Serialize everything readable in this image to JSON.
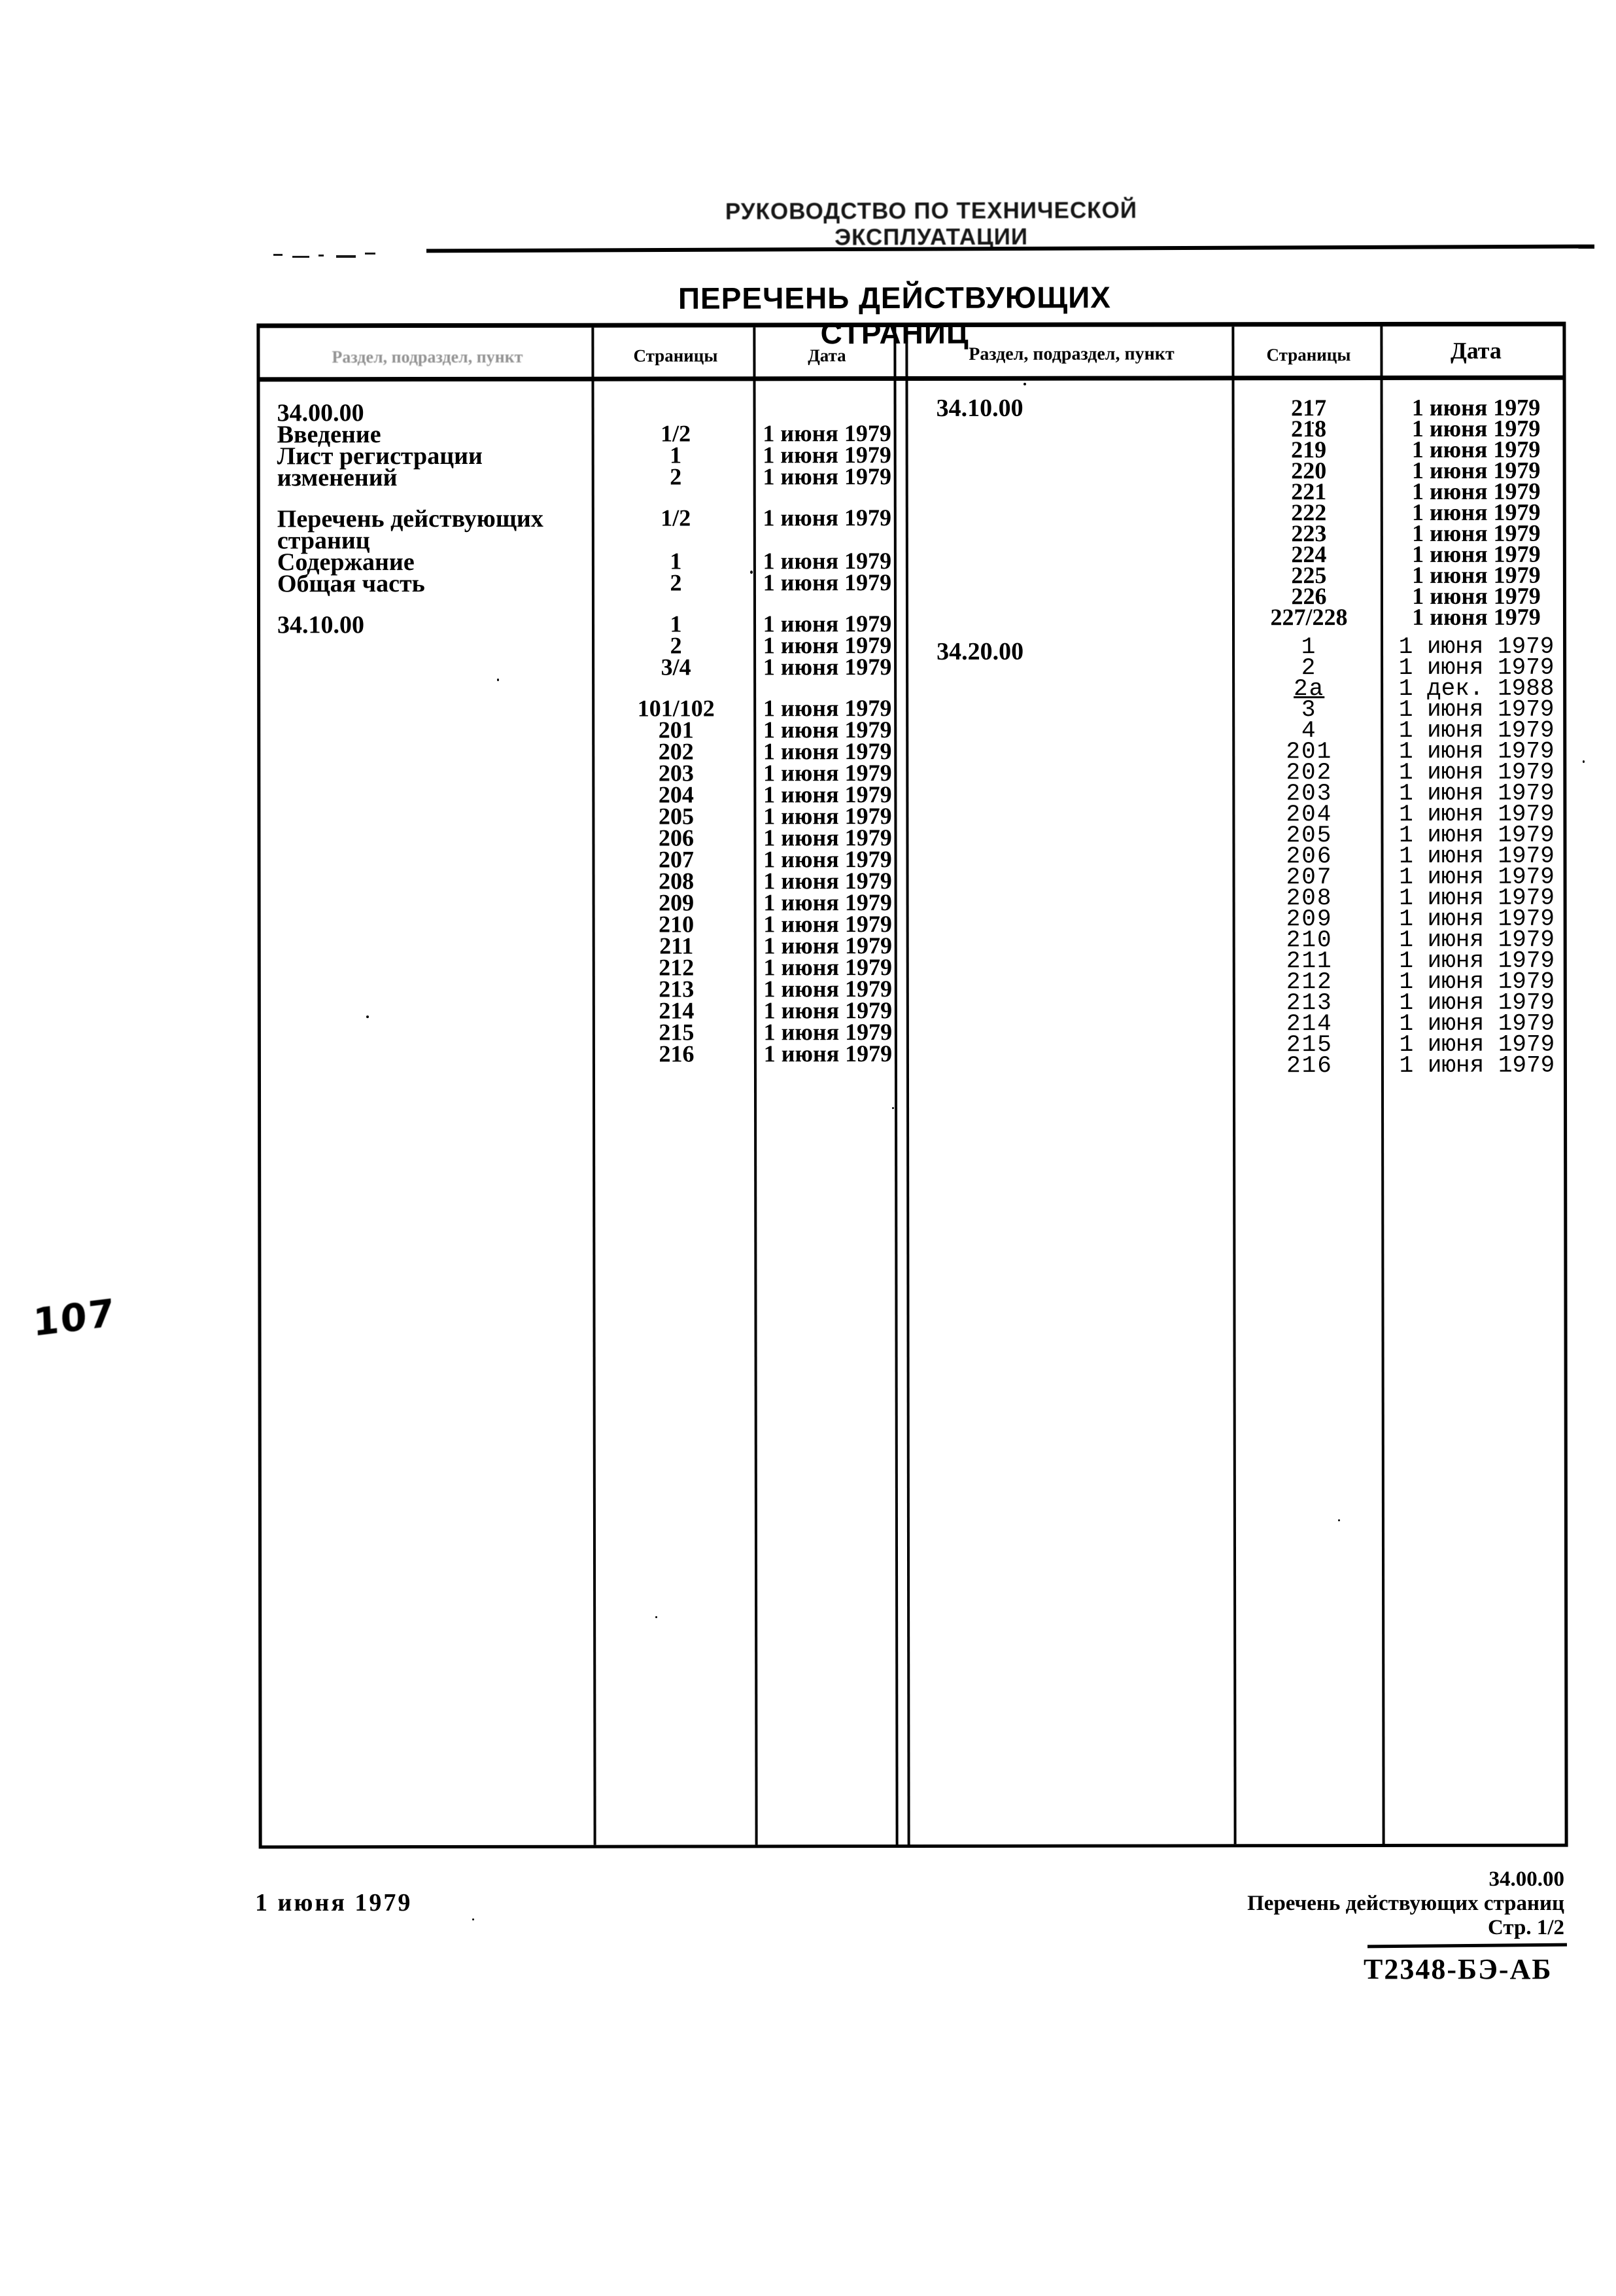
{
  "page": {
    "running_header": "РУКОВОДСТВО ПО ТЕХНИЧЕСКОЙ ЭКСПЛУАТАЦИИ",
    "title": "ПЕРЕЧЕНЬ ДЕЙСТВУЮЩИХ СТРАНИЦ",
    "handwritten_page_number": "107"
  },
  "table": {
    "headers": {
      "section": "Раздел, подраздел, пункт",
      "pages": "Страницы",
      "date": "Дата"
    },
    "left_groups": [
      {
        "rows": [
          {
            "section": "34.00.00",
            "pages": "",
            "date": ""
          },
          {
            "section": "Введение",
            "pages": "1/2",
            "date": "1 июня 1979"
          },
          {
            "section": "Лист регистрации",
            "pages": "1",
            "date": "1 июня 1979"
          },
          {
            "section": "изменений",
            "pages": "2",
            "date": "1 июня 1979"
          }
        ]
      },
      {
        "rows": [
          {
            "section": "Перечень действующих",
            "pages": "1/2",
            "date": "1 июня 1979"
          },
          {
            "section": "страниц",
            "pages": "",
            "date": ""
          },
          {
            "section": "Содержание",
            "pages": "1",
            "date": "1 июня 1979"
          },
          {
            "section": "Общая часть",
            "pages": "2",
            "date": "1 июня 1979"
          }
        ]
      },
      {
        "rows": [
          {
            "section": "34.10.00",
            "pages": "1",
            "date": "1 июня 1979"
          },
          {
            "section": "",
            "pages": "2",
            "date": "1 июня 1979"
          },
          {
            "section": "",
            "pages": "3/4",
            "date": "1 июня 1979"
          }
        ]
      },
      {
        "rows": [
          {
            "section": "",
            "pages": "101/102",
            "date": "1 июня 1979"
          },
          {
            "section": "",
            "pages": "201",
            "date": "1 июня 1979"
          },
          {
            "section": "",
            "pages": "202",
            "date": "1 июня 1979"
          },
          {
            "section": "",
            "pages": "203",
            "date": "1 июня 1979"
          },
          {
            "section": "",
            "pages": "204",
            "date": "1 июня 1979"
          },
          {
            "section": "",
            "pages": "205",
            "date": "1 июня 1979"
          },
          {
            "section": "",
            "pages": "206",
            "date": "1 июня 1979"
          },
          {
            "section": "",
            "pages": "207",
            "date": "1 июня 1979"
          },
          {
            "section": "",
            "pages": "208",
            "date": "1 июня 1979"
          },
          {
            "section": "",
            "pages": "209",
            "date": "1 июня 1979"
          },
          {
            "section": "",
            "pages": "210",
            "date": "1 июня 1979"
          },
          {
            "section": "",
            "pages": "211",
            "date": "1 июня 1979"
          },
          {
            "section": "",
            "pages": "212",
            "date": "1 июня 1979"
          },
          {
            "section": "",
            "pages": "213",
            "date": "1 июня 1979"
          },
          {
            "section": "",
            "pages": "214",
            "date": "1 июня 1979"
          },
          {
            "section": "",
            "pages": "215",
            "date": "1 июня 1979"
          },
          {
            "section": "",
            "pages": "216",
            "date": "1 июня 1979"
          }
        ]
      }
    ],
    "right_groups": [
      {
        "rows": [
          {
            "section": "34.10.00",
            "pages": "217",
            "date": "1 июня 1979"
          },
          {
            "section": "",
            "pages": "218",
            "date": "1 июня 1979"
          },
          {
            "section": "",
            "pages": "219",
            "date": "1 июня 1979"
          },
          {
            "section": "",
            "pages": "220",
            "date": "1 июня 1979"
          },
          {
            "section": "",
            "pages": "221",
            "date": "1 июня 1979"
          },
          {
            "section": "",
            "pages": "222",
            "date": "1 июня 1979"
          },
          {
            "section": "",
            "pages": "223",
            "date": "1 июня 1979"
          },
          {
            "section": "",
            "pages": "224",
            "date": "1 июня 1979"
          },
          {
            "section": "",
            "pages": "225",
            "date": "1 июня 1979"
          },
          {
            "section": "",
            "pages": "226",
            "date": "1 июня 1979"
          },
          {
            "section": "",
            "pages": "227/228",
            "date": "1 июня 1979"
          }
        ]
      },
      {
        "style": "typewriter",
        "rows": [
          {
            "section": "34.20.00",
            "pages": "1",
            "date": "1 июня 1979"
          },
          {
            "section": "",
            "pages": "2",
            "date": "1 июня 1979"
          },
          {
            "section": "",
            "pages": "2а",
            "date": "1 дек. 1988",
            "underline": true
          },
          {
            "section": "",
            "pages": "3",
            "date": "1 июня 1979"
          },
          {
            "section": "",
            "pages": "4",
            "date": "1 июня 1979"
          },
          {
            "section": "",
            "pages": "201",
            "date": "1 июня 1979"
          },
          {
            "section": "",
            "pages": "202",
            "date": "1 июня 1979"
          },
          {
            "section": "",
            "pages": "203",
            "date": "1 июня 1979"
          },
          {
            "section": "",
            "pages": "204",
            "date": "1 июня 1979"
          },
          {
            "section": "",
            "pages": "205",
            "date": "1 июня 1979"
          },
          {
            "section": "",
            "pages": "206",
            "date": "1 июня 1979"
          },
          {
            "section": "",
            "pages": "207",
            "date": "1 июня 1979"
          },
          {
            "section": "",
            "pages": "208",
            "date": "1 июня 1979"
          },
          {
            "section": "",
            "pages": "209",
            "date": "1 июня 1979"
          },
          {
            "section": "",
            "pages": "210",
            "date": "1 июня 1979"
          },
          {
            "section": "",
            "pages": "211",
            "date": "1 июня 1979"
          },
          {
            "section": "",
            "pages": "212",
            "date": "1 июня 1979"
          },
          {
            "section": "",
            "pages": "213",
            "date": "1 июня 1979"
          },
          {
            "section": "",
            "pages": "214",
            "date": "1 июня 1979"
          },
          {
            "section": "",
            "pages": "215",
            "date": "1 июня 1979"
          },
          {
            "section": "",
            "pages": "216",
            "date": "1 июня 1979"
          }
        ]
      }
    ]
  },
  "footer": {
    "date_label": "1 июня 1979",
    "section_ref": "34.00.00",
    "doc_title_ref": "Перечень действующих страниц",
    "page_ref": "Стр. 1/2",
    "doc_code": "Т2348-БЭ-АБ"
  }
}
